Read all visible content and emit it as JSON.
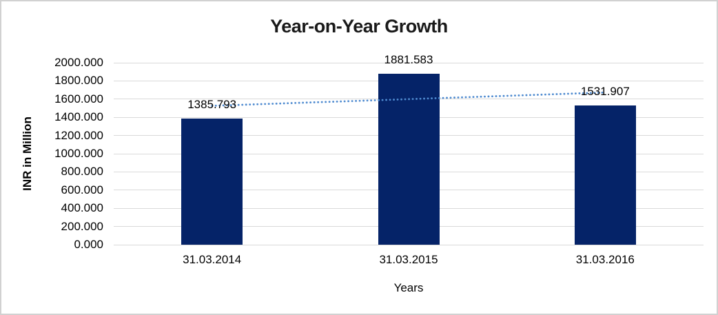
{
  "frame": {
    "background": "#FFFFFF",
    "border_color": "#D1D1D1"
  },
  "chart_data": {
    "type": "bar",
    "title": "Year-on-Year Growth",
    "xlabel": "Years",
    "ylabel": "INR in Million",
    "categories": [
      "31.03.2014",
      "31.03.2015",
      "31.03.2016"
    ],
    "values": [
      1385.793,
      1881.583,
      1531.907
    ],
    "data_labels": [
      "1385.793",
      "1881.583",
      "1531.907"
    ],
    "y_ticks": [
      "0.000",
      "200.000",
      "400.000",
      "600.000",
      "800.000",
      "1000.000",
      "1200.000",
      "1400.000",
      "1600.000",
      "1800.000",
      "2000.000"
    ],
    "ylim": [
      0,
      2000
    ],
    "grid": true,
    "legend": "none",
    "bar_color": "#052368",
    "gridline_color": "#D9D9D9",
    "axis_text_color": "#000000",
    "title_color": "#1A1A1A",
    "trendline": {
      "type": "linear",
      "style": "dotted",
      "color": "#4F8BD0"
    }
  }
}
